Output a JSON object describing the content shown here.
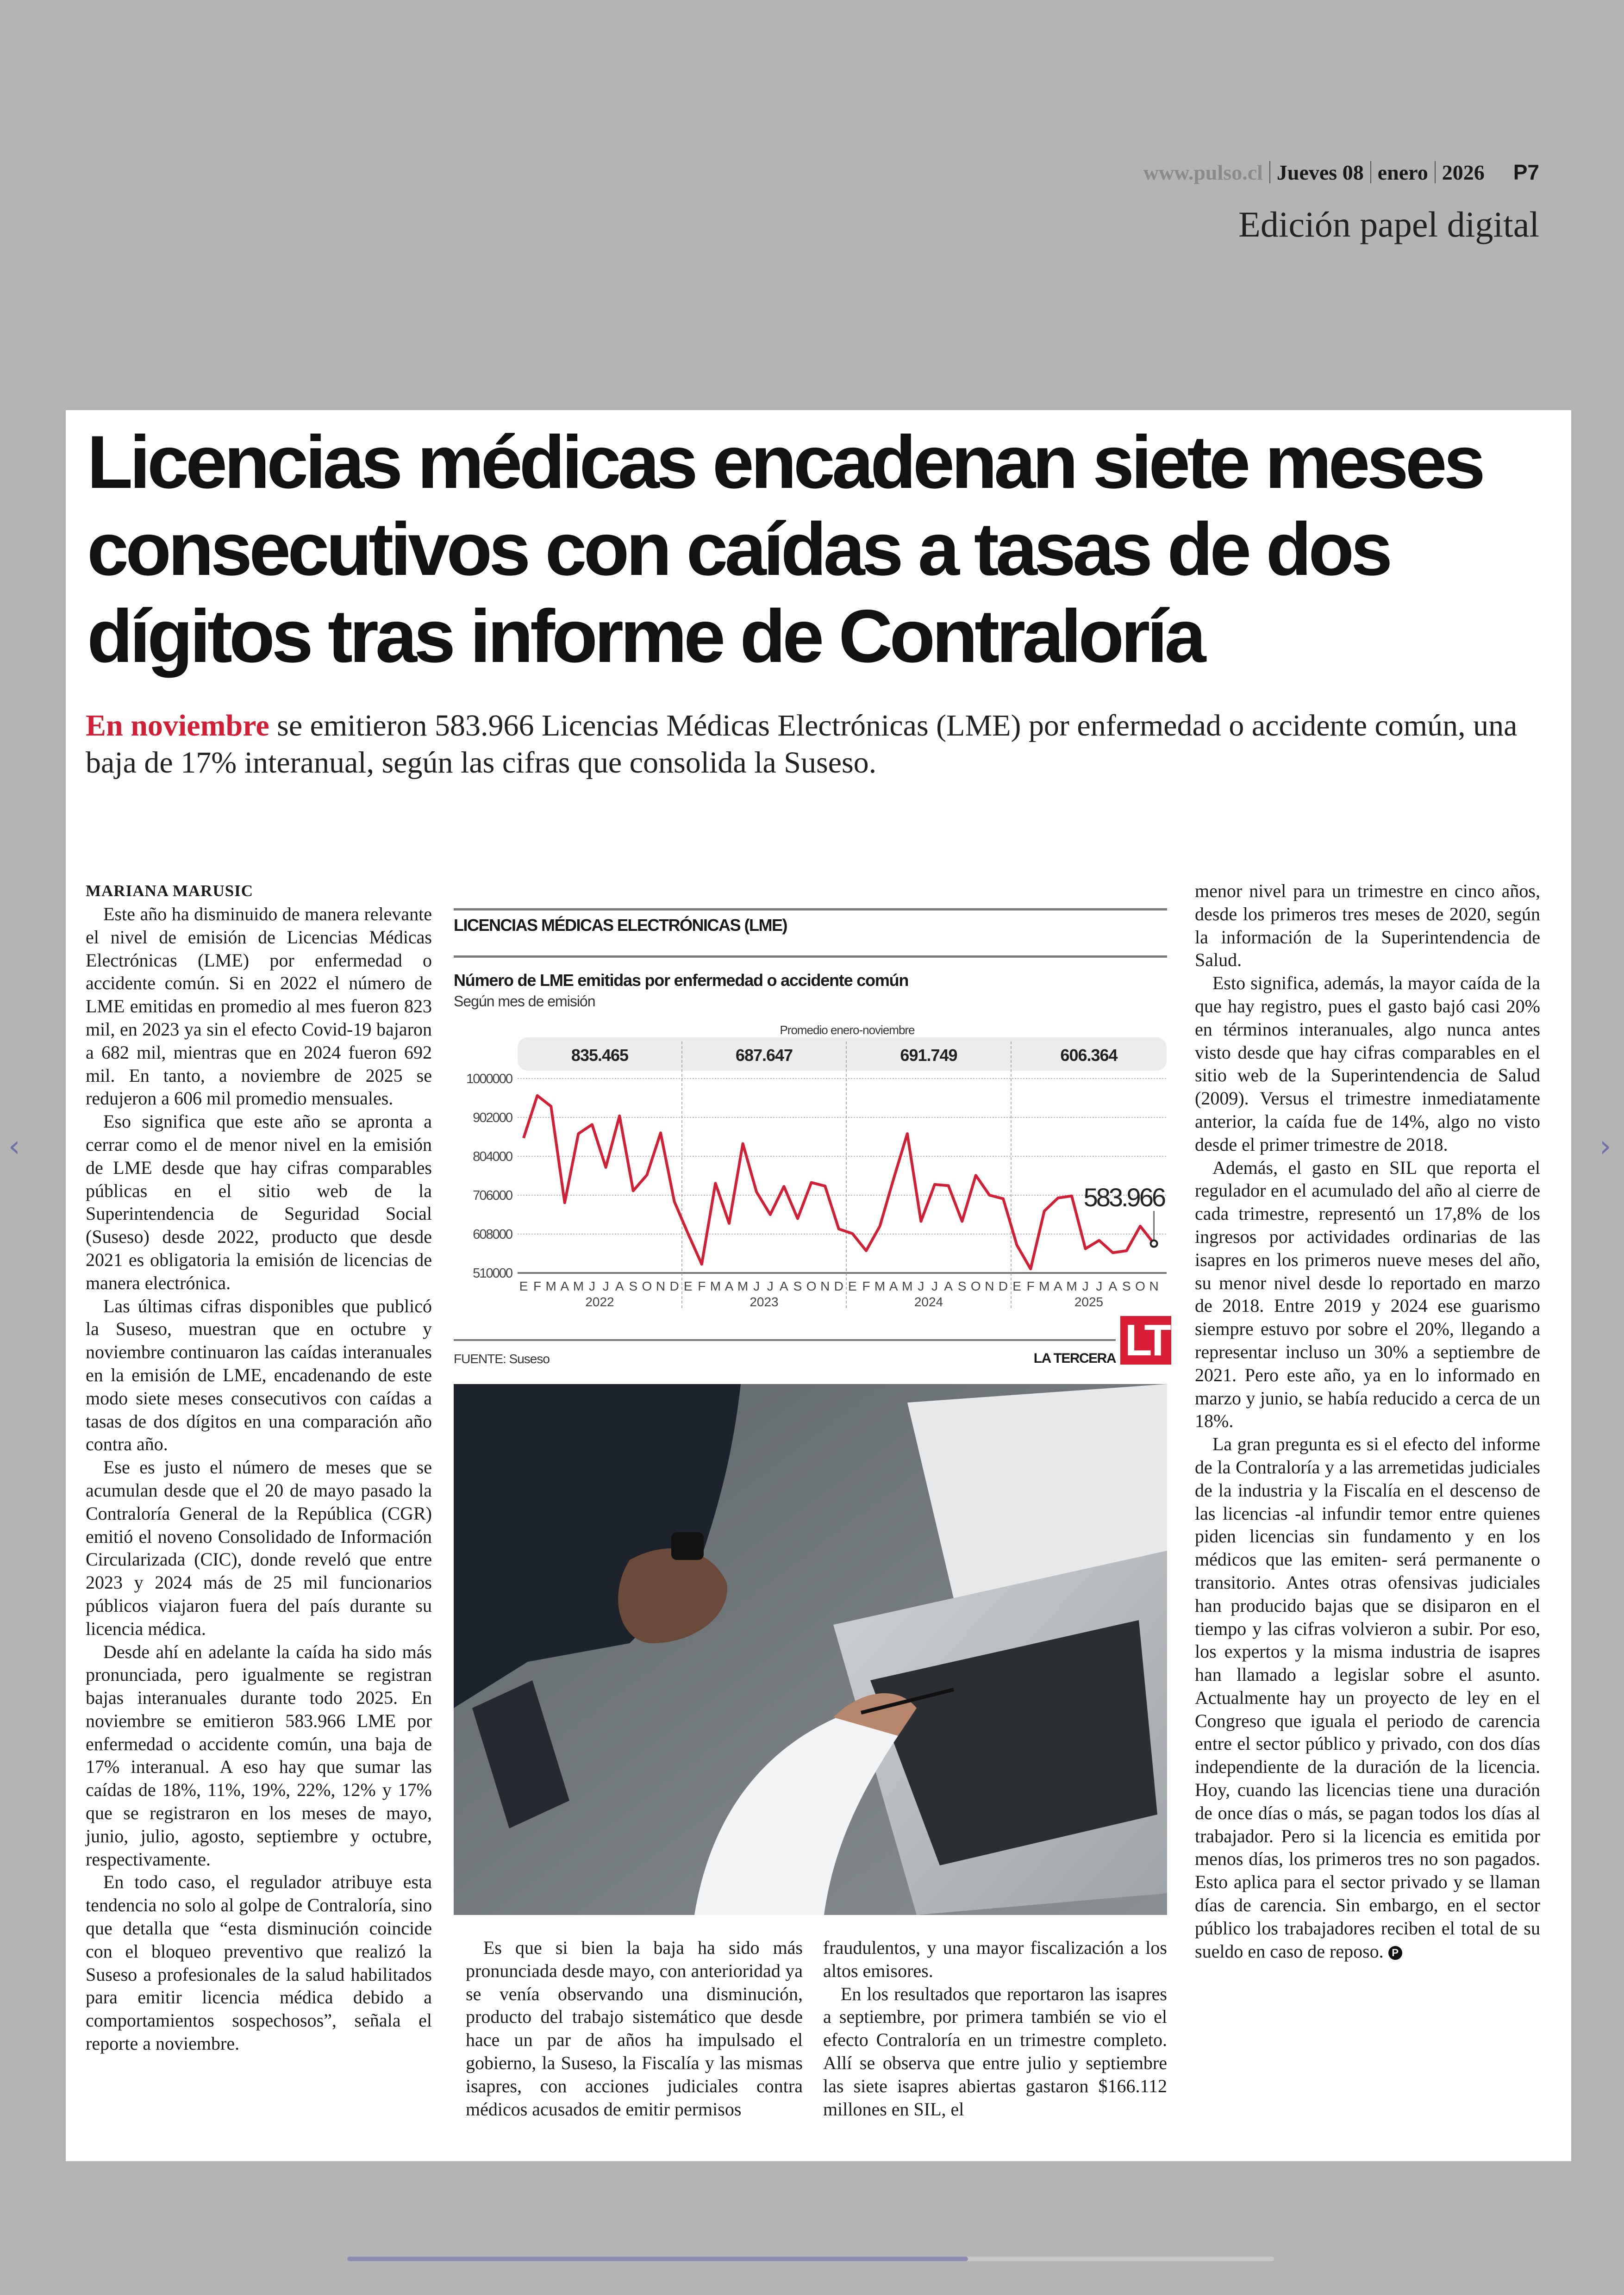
{
  "masthead": {
    "site": "www.pulso.cl",
    "day": "Jueves 08",
    "month": "enero",
    "year": "2026",
    "page": "P7"
  },
  "edition": "Edición papel digital",
  "article": {
    "headline": [
      "Licencias médicas encadenan siete meses",
      "consecutivos con caídas a tasas de dos",
      "dígitos tras informe de Contraloría"
    ],
    "deck_lead": "En noviembre",
    "deck_rest": " se emitieron 583.966 Licencias Médicas Electrónicas (LME) por enfermedad o accidente común, una baja de 17% interanual, según las cifras que consolida la Suseso.",
    "byline": "MARIANA MARUSIC",
    "col1": [
      "Este año ha disminuido de manera relevante el nivel de emisión de Licencias Médicas Electrónicas (LME) por enfermedad o accidente común. Si en 2022 el número de LME emitidas en promedio al mes fueron 823 mil, en 2023 ya sin el efecto Covid-19 bajaron a 682 mil, mientras que en 2024 fueron 692 mil. En tanto, a noviembre de 2025 se redujeron a 606 mil promedio mensuales.",
      "Eso significa que este año se apronta a cerrar como el de menor nivel en la emisión de LME desde que hay cifras comparables públicas en el sitio web de la Superintendencia de Seguridad Social (Suseso) desde 2022, producto que desde 2021 es obligatoria la emisión de licencias de manera electrónica.",
      "Las últimas cifras disponibles que publicó la Suseso, muestran que en octubre y noviembre continuaron las caídas interanuales en la emisión de LME, encadenando de este modo siete meses consecutivos con caídas a tasas de dos dígitos en una comparación año contra año.",
      "Ese es justo el número de meses que se acumulan desde que el 20 de mayo pasado la Contraloría General de la República (CGR) emitió el noveno Consolidado de Información Circularizada (CIC), donde reveló que entre 2023 y 2024 más de 25 mil funcionarios públicos viajaron fuera del país durante su licencia médica.",
      "Desde ahí en adelante la caída ha sido más pronunciada, pero igualmente se registran bajas interanuales durante todo 2025. En noviembre se emitieron 583.966 LME por enfermedad o accidente común, una baja de 17% interanual. A eso hay que sumar las caídas de 18%, 11%, 19%, 22%, 12% y 17% que se registraron en los meses de mayo, junio, julio, agosto, septiembre y octubre, respectivamente.",
      "En todo caso, el regulador atribuye esta tendencia no solo al golpe de Contraloría, sino que detalla que “esta disminución coincide con el bloqueo preventivo que realizó la Suseso a profesionales de la salud habilitados para emitir licencia médica debido a comportamientos sospechosos”, señala el reporte a noviembre."
    ],
    "col2": [
      "Es que si bien la baja ha sido más pronunciada desde mayo, con anterioridad ya se venía observando una disminución, producto del trabajo sistemático que desde hace un par de años ha impulsado el gobierno, la Suseso, la Fiscalía y las mismas isapres, con acciones judiciales contra médicos acusados de emitir permisos"
    ],
    "col3": [
      "fraudulentos, y una mayor fiscalización a los altos emisores.",
      "En los resultados que reportaron las isapres a septiembre, por primera también se vio el efecto Contraloría en un trimestre completo. Allí se observa que entre julio y septiembre las siete isapres abiertas gastaron $166.112 millones en SIL, el"
    ],
    "col4": [
      "menor nivel para un trimestre en cinco años, desde los primeros tres meses de 2020, según la información de la Superintendencia de Salud.",
      "Esto significa, además, la mayor caída de la que hay registro, pues el gasto bajó casi 20% en términos interanuales, algo nunca antes visto desde que hay cifras comparables en el sitio web de la Superintendencia de Salud (2009). Versus el trimestre inmediatamente anterior, la caída fue de 14%, algo no visto desde el primer trimestre de 2018.",
      "Además, el gasto en SIL que reporta el regulador en el acumulado del año al cierre de cada trimestre, representó un 17,8% de los ingresos por actividades ordinarias de las isapres en los primeros nueve meses del año, su menor nivel desde lo reportado en marzo de 2018. Entre 2019 y 2024 ese guarismo siempre estuvo por sobre el 20%, llegando a representar incluso un 30% a septiembre de 2021. Pero este año, ya en lo informado en marzo y junio, se había reducido a cerca de un 18%.",
      "La gran pregunta es si el efecto del informe de la Contraloría y a las arremetidas judiciales de la industria y la Fiscalía en el descenso de las licencias -al infundir temor entre quienes piden licencias sin fundamento y en los médicos que las emiten- será permanente o transitorio. Antes otras ofensivas judiciales han producido bajas que se disiparon en el tiempo y las cifras volvieron a subir. Por eso, los expertos y la misma industria de isapres han llamado a legislar sobre el asunto. Actualmente hay un proyecto de ley en el Congreso que iguala el periodo de carencia entre el sector público y privado, con dos días independiente de la duración de la licencia. Hoy, cuando las licencias tiene una duración de once días o más, se pagan todos los días al trabajador. Pero si la licencia es emitida por menos días, los primeros tres no son pagados. Esto aplica para el sector privado y se llaman días de carencia. Sin embargo, en el sector público los trabajadores reciben el total de su sueldo en caso de reposo."
    ],
    "end_mark": "P"
  },
  "chart_data": {
    "type": "line",
    "kicker": "LICENCIAS MÉDICAS ELECTRÓNICAS (LME)",
    "title": "Número de LME emitidas por enfermedad o accidente común",
    "subtitle": "Según mes de emisión",
    "average_label": "Promedio enero-noviembre",
    "averages": [
      "835.465",
      "687.647",
      "691.749",
      "606.364"
    ],
    "years": [
      "2022",
      "2023",
      "2024",
      "2025"
    ],
    "month_labels": [
      "E",
      "F",
      "M",
      "A",
      "M",
      "J",
      "J",
      "A",
      "S",
      "O",
      "N",
      "D"
    ],
    "yticks": [
      1000000,
      902000,
      804000,
      706000,
      608000,
      510000
    ],
    "ylim": [
      510000,
      1000000
    ],
    "grid": true,
    "series": [
      {
        "values": [
          850000,
          957000,
          930000,
          687000,
          861000,
          884000,
          776000,
          906000,
          717000,
          757000,
          863000,
          690000,
          609000,
          532000,
          736000,
          635000,
          836000,
          714000,
          657000,
          728000,
          647000,
          738000,
          729000,
          621000,
          609000,
          566000,
          628000,
          747000,
          861000,
          640000,
          733000,
          730000,
          640000,
          756000,
          706000,
          697000,
          580000,
          520000,
          666000,
          699000,
          704000,
          571000,
          592000,
          561000,
          566000,
          628000,
          583966
        ],
        "color": "#d21f36"
      }
    ],
    "last_value_label": "583.966",
    "source": "FUENTE: Suseso",
    "credit": "LA TERCERA",
    "logo_text": "LT"
  },
  "nav": {
    "prev_icon": "chevron-left-icon",
    "next_icon": "chevron-right-icon",
    "prev": "‹",
    "next": "›"
  },
  "scroll_progress": 0.67
}
